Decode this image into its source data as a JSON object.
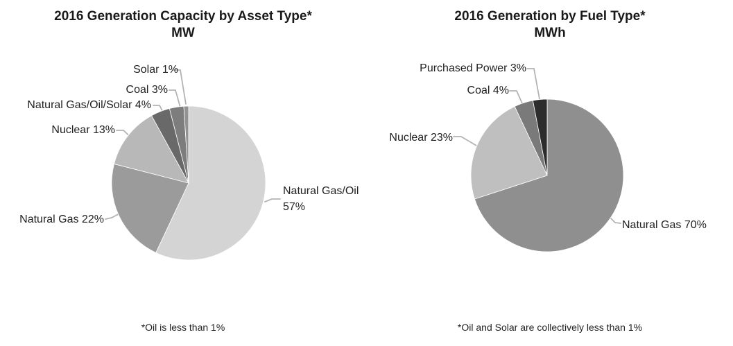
{
  "page": {
    "background": "#ffffff",
    "colors": {
      "text": "#212121",
      "title": "#1a1a1a",
      "leader_line": "#b3b3b3",
      "slice_border": "#ffffff"
    }
  },
  "chart_data": [
    {
      "type": "pie",
      "title": "2016 Generation Capacity by Asset Type*",
      "subtitle": "MW",
      "footnote": "*Oil is less than 1%",
      "legend_position": "none",
      "labels_position": "outside-with-leader-lines",
      "start_angle_deg": 0,
      "direction": "clockwise",
      "slices": [
        {
          "name": "Natural Gas/Oil",
          "value": 57,
          "label": "Natural Gas/Oil 57%",
          "label_line1": "Natural Gas/Oil",
          "label_line2": "57%",
          "color": "#d4d4d4"
        },
        {
          "name": "Natural Gas",
          "value": 22,
          "label": "Natural Gas 22%",
          "color": "#9b9b9b"
        },
        {
          "name": "Nuclear",
          "value": 13,
          "label": "Nuclear 13%",
          "color": "#b8b8b8"
        },
        {
          "name": "Natural Gas/Oil/Solar",
          "value": 4,
          "label": "Natural Gas/Oil/Solar 4%",
          "color": "#696969"
        },
        {
          "name": "Coal",
          "value": 3,
          "label": "Coal 3%",
          "color": "#7d7d7d"
        },
        {
          "name": "Solar",
          "value": 1,
          "label": "Solar 1%",
          "color": "#929292"
        }
      ]
    },
    {
      "type": "pie",
      "title": "2016 Generation by Fuel Type*",
      "subtitle": "MWh",
      "footnote": "*Oil and Solar are collectively less than 1%",
      "legend_position": "none",
      "labels_position": "outside-with-leader-lines",
      "start_angle_deg": 0,
      "direction": "clockwise",
      "slices": [
        {
          "name": "Natural Gas",
          "value": 70,
          "label": "Natural Gas 70%",
          "color": "#8f8f8f"
        },
        {
          "name": "Nuclear",
          "value": 23,
          "label": "Nuclear 23%",
          "color": "#bfbfbf"
        },
        {
          "name": "Coal",
          "value": 4,
          "label": "Coal 4%",
          "color": "#7a7a7a"
        },
        {
          "name": "Purchased Power",
          "value": 3,
          "label": "Purchased Power 3%",
          "color": "#2d2d2d"
        }
      ]
    }
  ]
}
